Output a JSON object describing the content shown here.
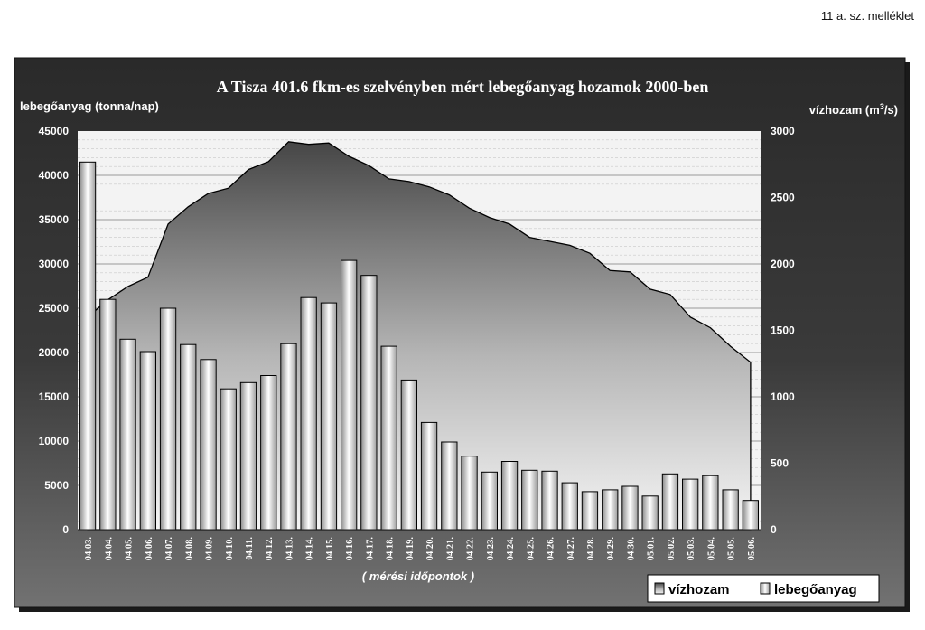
{
  "page": {
    "corner_note": "11 a. sz. melléklet"
  },
  "colors": {
    "panel_dark": "#2b2b2b",
    "panel_mid": "#6a6a6a",
    "plot_bg": "#f2f2f2",
    "area_top": "#4a4a4a",
    "area_bottom": "#f0f0f0",
    "bar_dark": "#9a9a9a",
    "bar_light": "#ffffff",
    "text_light": "#ffffff"
  },
  "chart_data": {
    "type": "bar",
    "title": "A Tisza 401.6 fkm-es szelvényben mért lebegőanyag hozamok 2000-ben",
    "ylabel_left": "lebegőanyag (tonna/nap)",
    "ylabel_right_prefix": "vízhozam (m",
    "ylabel_right_sup": "3",
    "ylabel_right_suffix": "/s)",
    "xlabel": "( mérési időpontok )",
    "ylim_left": [
      0,
      45000
    ],
    "yticks_left": [
      "0",
      "5000",
      "10000",
      "15000",
      "20000",
      "25000",
      "30000",
      "35000",
      "40000",
      "45000"
    ],
    "ylim_right": [
      0,
      3000
    ],
    "yticks_right": [
      "0",
      "500",
      "1000",
      "1500",
      "2000",
      "2500",
      "3000"
    ],
    "grid": true,
    "legend_position": "bottom-right",
    "categories": [
      "04.03.",
      "04.04.",
      "04.05.",
      "04.06.",
      "04.07.",
      "04.08.",
      "04.09.",
      "04.10.",
      "04.11.",
      "04.12.",
      "04.13.",
      "04.14.",
      "04.15.",
      "04.16.",
      "04.17.",
      "04.18.",
      "04.19.",
      "04.20.",
      "04.21.",
      "04.22.",
      "04.23.",
      "04.24.",
      "04.25.",
      "04.26.",
      "04.27.",
      "04.28.",
      "04.29.",
      "04.30.",
      "05.01.",
      "05.02.",
      "05.03.",
      "05.04.",
      "05.05.",
      "05.06."
    ],
    "series": [
      {
        "name": "vízhozam",
        "type": "area",
        "axis": "right",
        "values": [
          1600,
          1730,
          1830,
          1900,
          2300,
          2430,
          2530,
          2570,
          2710,
          2770,
          2920,
          2900,
          2910,
          2810,
          2740,
          2640,
          2620,
          2580,
          2520,
          2420,
          2350,
          2300,
          2200,
          2170,
          2140,
          2080,
          1950,
          1940,
          1810,
          1770,
          1600,
          1520,
          1380,
          1260
        ]
      },
      {
        "name": "lebegőanyag",
        "type": "bar",
        "axis": "left",
        "values": [
          41500,
          26000,
          21500,
          20100,
          25000,
          20900,
          19200,
          15900,
          16600,
          17400,
          21000,
          26200,
          25600,
          30400,
          28700,
          20700,
          16900,
          12100,
          9900,
          8300,
          6500,
          7700,
          6700,
          6600,
          5300,
          4300,
          4500,
          4900,
          3800,
          6300,
          5700,
          6100,
          4500,
          3300
        ]
      }
    ]
  }
}
